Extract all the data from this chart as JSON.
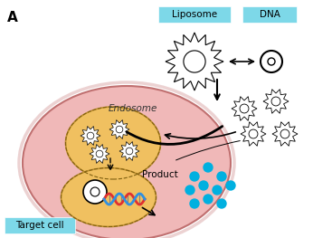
{
  "title_label": "A",
  "liposome_label": "Liposome",
  "dna_label": "DNA",
  "endosome_label": "Endosome",
  "target_cell_label": "Target cell",
  "product_label": "Product",
  "bg_color": "#ffffff",
  "label_box_color": "#7dd8e8",
  "cell_outer_color": "#e8a0a0",
  "cell_inner_color": "#f0b8b8",
  "endosome_color": "#f0c060",
  "nucleus_color": "#f0c060",
  "arrow_color": "#000000",
  "product_dot_color": "#00b0e0",
  "dna_color1": "#e03030",
  "dna_color2": "#3090e0"
}
